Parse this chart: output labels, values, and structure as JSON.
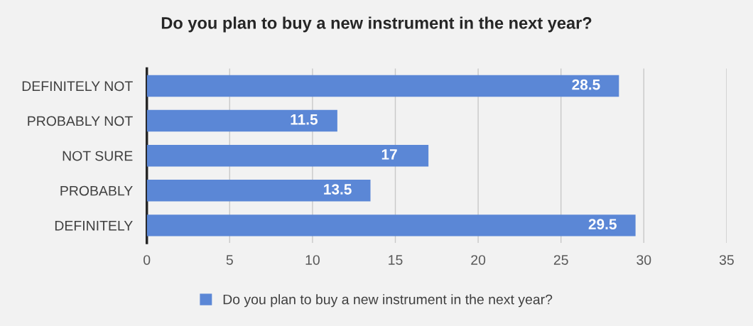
{
  "chart_data": {
    "type": "bar",
    "orientation": "horizontal",
    "title": "Do you plan to buy a new instrument in the next year?",
    "categories": [
      "DEFINITELY NOT",
      "PROBABLY NOT",
      "NOT SURE",
      "PROBABLY",
      "DEFINITELY"
    ],
    "series": [
      {
        "name": "Do you plan to buy a new instrument in the next year?",
        "color": "#5b87d6",
        "values": [
          28.5,
          11.5,
          17,
          13.5,
          29.5
        ]
      }
    ],
    "xlim": [
      0,
      35
    ],
    "xticks": [
      0,
      5,
      10,
      15,
      20,
      25,
      30,
      35
    ],
    "grid": "x",
    "legend": "bottom",
    "data_labels": true
  }
}
